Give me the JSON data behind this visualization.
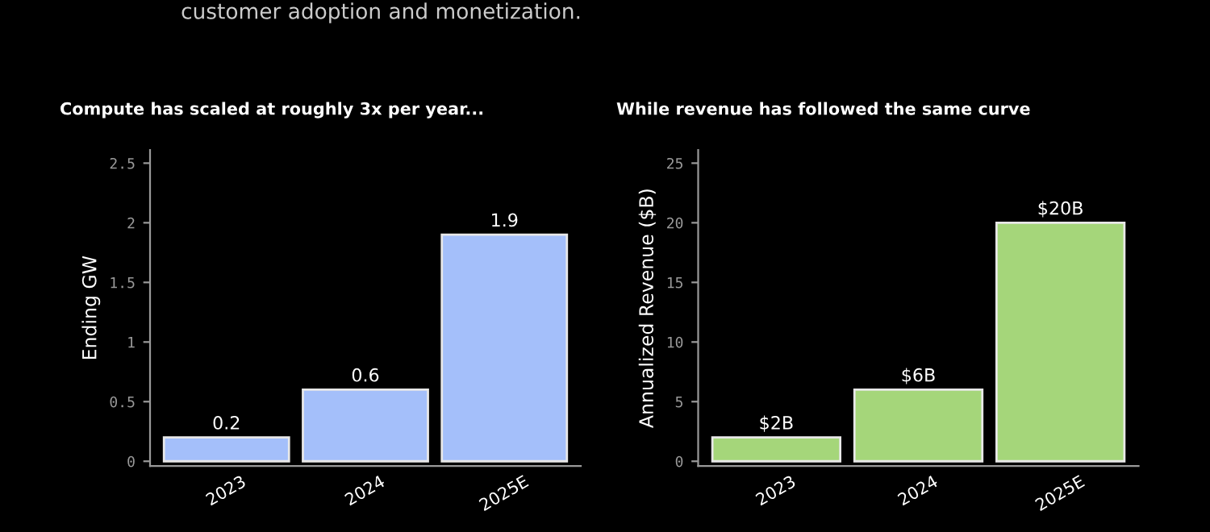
{
  "chart_data": [
    {
      "type": "bar",
      "title": "Compute has scaled at roughly 3x per year...",
      "ylabel": "Ending GW",
      "annotations": [
        "customer adoption and monetization."
      ],
      "categories": [
        "2023",
        "2024",
        "2025E"
      ],
      "values": [
        0.2,
        0.6,
        1.9
      ],
      "color": "#a4bffa",
      "data_labels": true,
      "ylim": [
        -0.04,
        2.61
      ],
      "yticks": [
        0,
        0.5,
        1,
        1.5,
        2,
        2.5
      ],
      "grid": false,
      "legend": false
    },
    {
      "type": "bar",
      "title": "While revenue has followed the same curve",
      "ylabel": "Annualized Revenue ($B)",
      "categories": [
        "2023",
        "2024",
        "2025E"
      ],
      "values": [
        2,
        6,
        20
      ],
      "value_labels": [
        "$2B",
        "$6B",
        "$20B"
      ],
      "color": "#a5d67a",
      "ylim": [
        -0.4,
        26.1
      ],
      "yticks": [
        0,
        5,
        10,
        15,
        20,
        25
      ],
      "grid": false,
      "legend": false
    }
  ]
}
